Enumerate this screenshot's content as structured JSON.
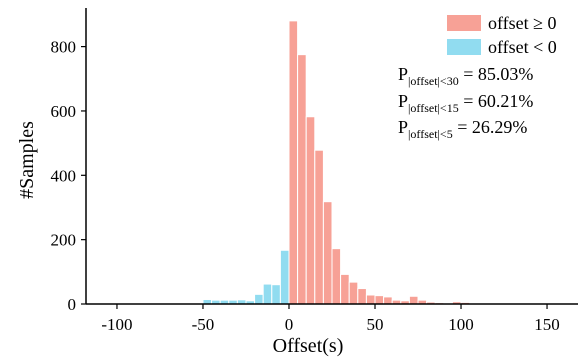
{
  "chart_data": {
    "type": "bar",
    "subtype": "histogram",
    "xlabel": "Offset(s)",
    "ylabel": "#Samples",
    "xlim": [
      -118,
      168
    ],
    "ylim": [
      0,
      920
    ],
    "xticks": [
      -100,
      -50,
      0,
      50,
      100,
      150
    ],
    "yticks": [
      0,
      200,
      400,
      600,
      800
    ],
    "bin_width": 5,
    "legend_position": "top-right",
    "series": [
      {
        "name": "offset < 0",
        "color": "#91dcf0",
        "bins": [
          {
            "x": -50,
            "value": 14
          },
          {
            "x": -45,
            "value": 12
          },
          {
            "x": -40,
            "value": 12
          },
          {
            "x": -35,
            "value": 12
          },
          {
            "x": -30,
            "value": 13
          },
          {
            "x": -25,
            "value": 10
          },
          {
            "x": -20,
            "value": 30
          },
          {
            "x": -15,
            "value": 62
          },
          {
            "x": -10,
            "value": 60
          },
          {
            "x": -5,
            "value": 167
          }
        ]
      },
      {
        "name": "offset ≥ 0",
        "color": "#f7a196",
        "bins": [
          {
            "x": 0,
            "value": 880
          },
          {
            "x": 5,
            "value": 775
          },
          {
            "x": 10,
            "value": 582
          },
          {
            "x": 15,
            "value": 478
          },
          {
            "x": 20,
            "value": 318
          },
          {
            "x": 25,
            "value": 172
          },
          {
            "x": 30,
            "value": 92
          },
          {
            "x": 35,
            "value": 68
          },
          {
            "x": 40,
            "value": 48
          },
          {
            "x": 45,
            "value": 28
          },
          {
            "x": 50,
            "value": 26
          },
          {
            "x": 55,
            "value": 22
          },
          {
            "x": 60,
            "value": 12
          },
          {
            "x": 65,
            "value": 10
          },
          {
            "x": 70,
            "value": 24
          },
          {
            "x": 75,
            "value": 12
          },
          {
            "x": 80,
            "value": 6
          },
          {
            "x": 85,
            "value": 4
          },
          {
            "x": 90,
            "value": 3
          },
          {
            "x": 95,
            "value": 7
          },
          {
            "x": 100,
            "value": 5
          }
        ]
      }
    ],
    "annotations": [
      {
        "base": "P",
        "subscript": "|offset|<30",
        "value": "= 85.03%"
      },
      {
        "base": "P",
        "subscript": "|offset|<15",
        "value": "= 60.21%"
      },
      {
        "base": "P",
        "subscript": "|offset|<5",
        "value": "= 26.29%"
      }
    ]
  }
}
